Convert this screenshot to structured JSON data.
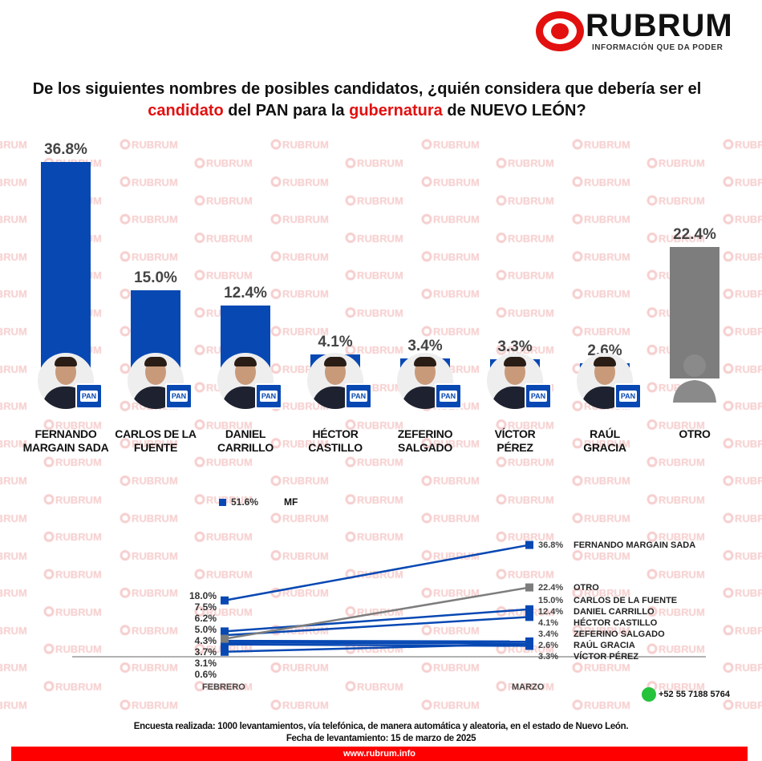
{
  "brand": {
    "name": "RUBRUM",
    "tagline": "INFORMACIÓN QUE DA PODER",
    "watermark": "RUBRUM",
    "accent": "#e31010",
    "pan_blue": "#0748b3"
  },
  "title": {
    "part1": "De los siguientes nombres de posibles candidatos, ¿quién considera que debería ser el ",
    "hl1": "candidato",
    "part2": " del PAN para la ",
    "hl2": "gubernatura",
    "part3": " de NUEVO LEÓN?"
  },
  "chart_data": [
    {
      "type": "bar",
      "title": "¿Quién considera que debería ser el candidato del PAN para la gubernatura de NUEVO LEÓN?",
      "categories": [
        "FERNANDO MARGAIN SADA",
        "CARLOS DE LA FUENTE",
        "DANIEL CARRILLO",
        "HÉCTOR CASTILLO",
        "ZEFERINO SALGADO",
        "VÍCTOR PÉREZ",
        "RAÚL GRACIA",
        "OTRO"
      ],
      "name_lines": [
        [
          "FERNANDO",
          "MARGAIN SADA"
        ],
        [
          "CARLOS DE LA",
          "FUENTE"
        ],
        [
          "DANIEL",
          "CARRILLO"
        ],
        [
          "HÉCTOR",
          "CASTILLO"
        ],
        [
          "ZEFERINO",
          "SALGADO"
        ],
        [
          "VÍCTOR",
          "PÉREZ"
        ],
        [
          "RAÚL",
          "GRACIA"
        ],
        [
          "OTRO",
          ""
        ]
      ],
      "values": [
        36.8,
        15.0,
        12.4,
        4.1,
        3.4,
        3.3,
        2.6,
        22.4
      ],
      "labels": [
        "36.8%",
        "15.0%",
        "12.4%",
        "4.1%",
        "3.4%",
        "3.3%",
        "2.6%",
        "22.4%"
      ],
      "party_badge": "PAN",
      "ylim": [
        0,
        40
      ]
    },
    {
      "type": "line",
      "categories": [
        "FEBRERO",
        "MARZO"
      ],
      "legend": {
        "value": "51.6%",
        "label": "MF"
      },
      "feb_labels": [
        "18.0%",
        "7.5%",
        "6.2%",
        "5.0%",
        "4.3%",
        "3.7%",
        "3.1%",
        "0.6%"
      ],
      "series": [
        {
          "name": "FERNANDO MARGAIN SADA",
          "values": [
            18.0,
            36.8
          ],
          "label": "36.8%",
          "color": "#0748b3"
        },
        {
          "name": "OTRO",
          "values": [
            5.0,
            22.4
          ],
          "label": "22.4%",
          "color": "#7d7d7d"
        },
        {
          "name": "CARLOS DE LA FUENTE",
          "values": [
            7.5,
            15.0
          ],
          "label": "15.0%",
          "color": "#0748b3"
        },
        {
          "name": "DANIEL CARRILLO",
          "values": [
            6.2,
            12.4
          ],
          "label": "12.4%",
          "color": "#0748b3"
        },
        {
          "name": "HÉCTOR CASTILLO",
          "values": [
            4.3,
            4.1
          ],
          "label": "4.1%",
          "color": "#0748b3"
        },
        {
          "name": "ZEFERINO SALGADO",
          "values": [
            3.7,
            3.4
          ],
          "label": "3.4%",
          "color": "#0748b3"
        },
        {
          "name": "RAÚL GRACIA",
          "values": [
            3.1,
            2.6
          ],
          "label": "2.6%",
          "color": "#0748b3"
        },
        {
          "name": "VÍCTOR PÉREZ",
          "values": [
            0.6,
            3.3
          ],
          "label": "3.3%",
          "color": "#0748b3"
        }
      ]
    }
  ],
  "contact": {
    "phone": "+52 55 7188 5764"
  },
  "note": {
    "line1": "Encuesta realizada: 1000 levantamientos, vía telefónica, de manera automática y aleatoria, en el estado de Nuevo León.",
    "line2": "Fecha de levantamiento: 15 de marzo de 2025"
  },
  "footer": {
    "url": "www.rubrum.info"
  }
}
